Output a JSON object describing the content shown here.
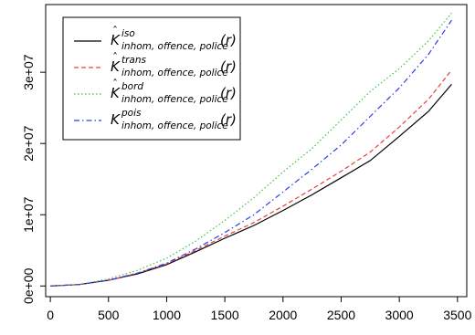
{
  "chart_data": {
    "type": "line",
    "title": "",
    "xlabel": "",
    "ylabel": "",
    "xlim": [
      -40,
      3580
    ],
    "ylim": [
      -1500000,
      39500000
    ],
    "x_ticks": [
      0,
      500,
      1000,
      1500,
      2000,
      2500,
      3000,
      3500
    ],
    "x_tick_labels": [
      "0",
      "500",
      "1000",
      "1500",
      "2000",
      "2500",
      "3000",
      "3500"
    ],
    "y_ticks": [
      0,
      10000000,
      20000000,
      30000000
    ],
    "y_tick_labels": [
      "0e+00",
      "1e+07",
      "2e+07",
      "3e+07"
    ],
    "grid": false,
    "legend_position": "top-left",
    "series": [
      {
        "name": "K̂ iso inhom, offence, police(r)",
        "symbol": "K",
        "hat": true,
        "superscript": "iso",
        "subscript": "inhom, offence, police",
        "argument": "(r)",
        "color": "#000000",
        "dash": "solid",
        "x": [
          0,
          250,
          500,
          750,
          1000,
          1250,
          1500,
          1750,
          2000,
          2250,
          2500,
          2750,
          3000,
          3250,
          3450
        ],
        "values": [
          0,
          200000,
          800000,
          1700000,
          3000000,
          4800000,
          6700000,
          8500000,
          10600000,
          12800000,
          15200000,
          17600000,
          21000000,
          24500000,
          28300000
        ]
      },
      {
        "name": "K̂ trans inhom, offence, police(r)",
        "symbol": "K",
        "hat": true,
        "superscript": "trans",
        "subscript": "inhom, offence, police",
        "argument": "(r)",
        "color": "#e8403a",
        "dash": "dashed",
        "x": [
          0,
          250,
          500,
          750,
          1000,
          1250,
          1500,
          1750,
          2000,
          2250,
          2500,
          2750,
          3000,
          3250,
          3450
        ],
        "values": [
          0,
          200000,
          800000,
          1800000,
          3100000,
          5000000,
          7000000,
          8900000,
          11200000,
          13600000,
          16100000,
          18800000,
          22300000,
          26200000,
          30300000
        ]
      },
      {
        "name": "K̂ bord inhom, offence, police(r)",
        "symbol": "K",
        "hat": true,
        "superscript": "bord",
        "subscript": "inhom, offence, police",
        "argument": "(r)",
        "color": "#3dc43d",
        "dash": "dotted",
        "x": [
          0,
          250,
          500,
          750,
          1000,
          1250,
          1500,
          1750,
          2000,
          2250,
          2500,
          2750,
          3000,
          3250,
          3450
        ],
        "values": [
          0,
          200000,
          1000000,
          2200000,
          3900000,
          6300000,
          9200000,
          12400000,
          16000000,
          19300000,
          23300000,
          27300000,
          30500000,
          34400000,
          38300000
        ]
      },
      {
        "name": "K pois inhom, offence, police(r)",
        "symbol": "K",
        "hat": false,
        "superscript": "pois",
        "subscript": "inhom, offence, police",
        "argument": "(r)",
        "color": "#2e3ee8",
        "dash": "dashdot",
        "x": [
          0,
          250,
          500,
          750,
          1000,
          1250,
          1500,
          1750,
          2000,
          2250,
          2500,
          2750,
          3000,
          3250,
          3450
        ],
        "values": [
          0,
          200000,
          800000,
          1800000,
          3200000,
          5200000,
          7500000,
          10000000,
          13200000,
          16400000,
          19800000,
          23800000,
          27800000,
          32500000,
          37300000
        ]
      }
    ]
  }
}
